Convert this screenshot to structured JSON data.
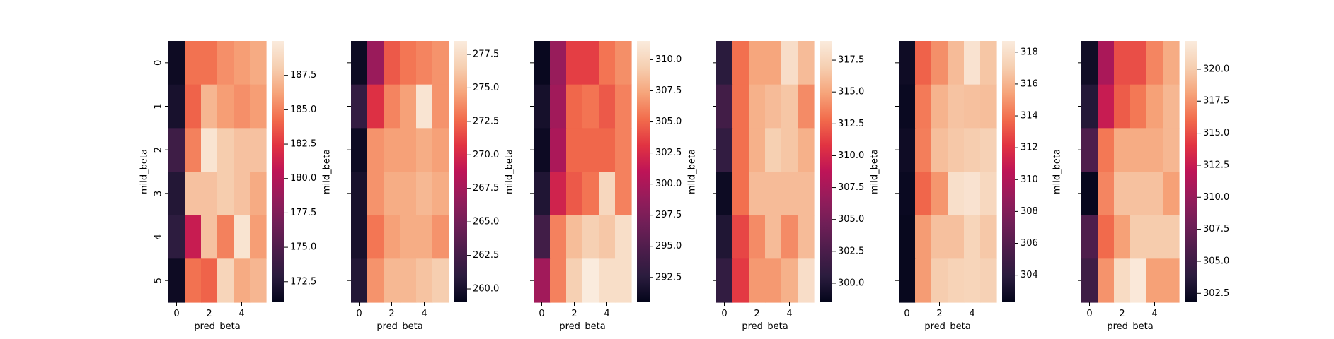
{
  "chart_data": [
    {
      "type": "heatmap",
      "title": "",
      "xlabel": "pred_beta",
      "ylabel": "mild_beta",
      "x_ticks": [
        "0",
        "2",
        "4"
      ],
      "y_ticks": [
        "0",
        "1",
        "2",
        "3",
        "4",
        "5"
      ],
      "colorbar_ticks": [
        "172.5",
        "175.0",
        "177.5",
        "180.0",
        "182.5",
        "185.0",
        "187.5"
      ],
      "vmin": 171.0,
      "vmax": 190.0,
      "values": [
        [
          171.5,
          184.5,
          184.5,
          185.5,
          186.0,
          186.5
        ],
        [
          172.0,
          184.0,
          187.0,
          186.0,
          185.5,
          186.0
        ],
        [
          174.0,
          185.0,
          189.5,
          188.0,
          187.5,
          187.5
        ],
        [
          172.5,
          187.5,
          187.5,
          188.0,
          187.5,
          186.5
        ],
        [
          173.0,
          181.0,
          187.5,
          185.0,
          189.5,
          186.0
        ],
        [
          171.5,
          184.5,
          184.0,
          188.5,
          186.5,
          187.0
        ]
      ]
    },
    {
      "type": "heatmap",
      "title": "",
      "xlabel": "pred_beta",
      "ylabel": "mild_beta",
      "x_ticks": [
        "0",
        "2",
        "4"
      ],
      "y_ticks": [
        "0",
        "1",
        "2",
        "3",
        "4",
        "5"
      ],
      "colorbar_ticks": [
        "260.0",
        "262.5",
        "265.0",
        "267.5",
        "270.0",
        "272.5",
        "275.0",
        "277.5"
      ],
      "vmin": 259.0,
      "vmax": 278.5,
      "values": [
        [
          259.5,
          267.0,
          272.0,
          273.0,
          273.5,
          274.0
        ],
        [
          261.5,
          270.5,
          273.5,
          274.5,
          278.0,
          274.0
        ],
        [
          259.5,
          274.0,
          274.5,
          274.5,
          275.0,
          274.5
        ],
        [
          260.0,
          274.0,
          275.0,
          275.0,
          275.5,
          275.0
        ],
        [
          260.0,
          273.0,
          274.5,
          275.0,
          275.0,
          274.0
        ],
        [
          260.5,
          274.0,
          275.5,
          275.5,
          276.0,
          276.5
        ]
      ]
    },
    {
      "type": "heatmap",
      "title": "",
      "xlabel": "pred_beta",
      "ylabel": "mild_beta",
      "x_ticks": [
        "0",
        "2",
        "4"
      ],
      "y_ticks": [
        "0",
        "1",
        "2",
        "3",
        "4",
        "5"
      ],
      "colorbar_ticks": [
        "292.5",
        "295.0",
        "297.5",
        "300.0",
        "302.5",
        "305.0",
        "307.5",
        "310.0"
      ],
      "vmin": 290.5,
      "vmax": 311.5,
      "values": [
        [
          290.8,
          299.0,
          303.5,
          303.5,
          305.5,
          306.5
        ],
        [
          291.5,
          299.5,
          305.0,
          305.5,
          304.5,
          306.0
        ],
        [
          291.0,
          300.0,
          305.0,
          305.0,
          305.0,
          306.0
        ],
        [
          292.0,
          302.0,
          304.5,
          305.5,
          310.0,
          306.0
        ],
        [
          294.0,
          306.0,
          308.5,
          309.5,
          309.0,
          310.5
        ],
        [
          299.5,
          306.0,
          309.5,
          311.5,
          310.5,
          310.5
        ]
      ]
    },
    {
      "type": "heatmap",
      "title": "",
      "xlabel": "pred_beta",
      "ylabel": "mild_beta",
      "x_ticks": [
        "0",
        "2",
        "4"
      ],
      "y_ticks": [
        "0",
        "1",
        "2",
        "3",
        "4",
        "5"
      ],
      "colorbar_ticks": [
        "300.0",
        "302.5",
        "305.0",
        "307.5",
        "310.0",
        "312.5",
        "315.0",
        "317.5"
      ],
      "vmin": 298.5,
      "vmax": 319.0,
      "values": [
        [
          300.5,
          313.0,
          315.0,
          315.0,
          318.0,
          316.0
        ],
        [
          302.0,
          313.0,
          315.5,
          316.0,
          316.5,
          314.0
        ],
        [
          301.0,
          313.0,
          315.5,
          317.0,
          316.5,
          315.5
        ],
        [
          299.0,
          313.0,
          316.0,
          316.0,
          316.0,
          316.0
        ],
        [
          300.0,
          311.5,
          314.0,
          316.0,
          314.0,
          316.0
        ],
        [
          301.0,
          311.0,
          314.5,
          314.5,
          315.5,
          318.0
        ]
      ]
    },
    {
      "type": "heatmap",
      "title": "",
      "xlabel": "pred_beta",
      "ylabel": "mild_beta",
      "x_ticks": [
        "0",
        "2",
        "4"
      ],
      "y_ticks": [
        "0",
        "1",
        "2",
        "3",
        "4",
        "5"
      ],
      "colorbar_ticks": [
        "304",
        "306",
        "308",
        "310",
        "312",
        "314",
        "316",
        "318"
      ],
      "vmin": 302.3,
      "vmax": 318.7,
      "values": [
        [
          302.8,
          313.5,
          314.8,
          316.3,
          318.2,
          316.7
        ],
        [
          302.6,
          314.2,
          316.0,
          316.6,
          316.5,
          316.4
        ],
        [
          302.8,
          314.3,
          316.4,
          316.8,
          317.0,
          317.2
        ],
        [
          302.6,
          313.6,
          315.0,
          318.0,
          318.2,
          317.6
        ],
        [
          302.5,
          315.2,
          316.5,
          316.5,
          317.4,
          316.8
        ],
        [
          302.5,
          315.2,
          317.0,
          317.3,
          317.4,
          317.2
        ]
      ]
    },
    {
      "type": "heatmap",
      "title": "",
      "xlabel": "pred_beta",
      "ylabel": "mild_beta",
      "x_ticks": [
        "0",
        "2",
        "4"
      ],
      "y_ticks": [
        "0",
        "1",
        "2",
        "3",
        "4",
        "5"
      ],
      "colorbar_ticks": [
        "302.5",
        "305.0",
        "307.5",
        "310.0",
        "312.5",
        "315.0",
        "317.5",
        "320.0"
      ],
      "vmin": 301.8,
      "vmax": 322.2,
      "values": [
        [
          302.5,
          311.0,
          315.0,
          315.0,
          317.0,
          318.5
        ],
        [
          303.5,
          312.5,
          315.5,
          316.5,
          318.0,
          319.0
        ],
        [
          306.0,
          316.5,
          318.5,
          318.5,
          318.5,
          319.0
        ],
        [
          302.0,
          317.0,
          319.5,
          319.5,
          319.5,
          318.0
        ],
        [
          306.0,
          316.0,
          318.0,
          320.0,
          320.0,
          320.0
        ],
        [
          305.0,
          317.5,
          321.0,
          322.0,
          318.0,
          318.0
        ]
      ]
    }
  ],
  "colormap": [
    "#03051a",
    "#2b1c3e",
    "#4c1d4b",
    "#701f57",
    "#961c5b",
    "#be1457",
    "#e13342",
    "#f26c4c",
    "#f6a47a",
    "#f6cfb1",
    "#faebdd"
  ]
}
